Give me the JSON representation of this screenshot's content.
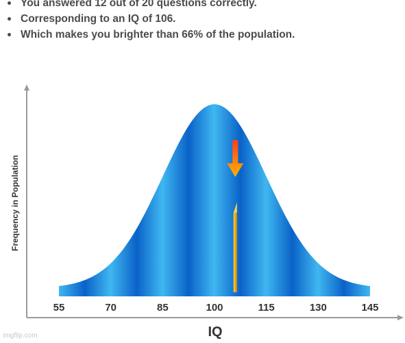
{
  "results": {
    "items": [
      "You answered 12 out of 20 questions correctly.",
      "Corresponding to an IQ of 106.",
      "Which makes you brighter than 66% of the population."
    ]
  },
  "chart_data": {
    "type": "area",
    "title": "",
    "xlabel": "IQ",
    "ylabel": "Frequency in Population",
    "x_ticks": [
      55,
      70,
      85,
      100,
      115,
      130,
      145
    ],
    "x_range": [
      55,
      145
    ],
    "mean": 100,
    "std_dev": 15,
    "marker": {
      "iq": 106,
      "arrow_icon": "down-arrow-icon"
    },
    "colors": {
      "curve_light": "#3fb6f0",
      "curve_dark": "#0a62c8",
      "marker": "#f4b400",
      "arrow_top": "#ff4b18",
      "arrow_bottom": "#ffb300",
      "axis": "#9a9a9a"
    }
  },
  "watermark": "imgflip.com"
}
